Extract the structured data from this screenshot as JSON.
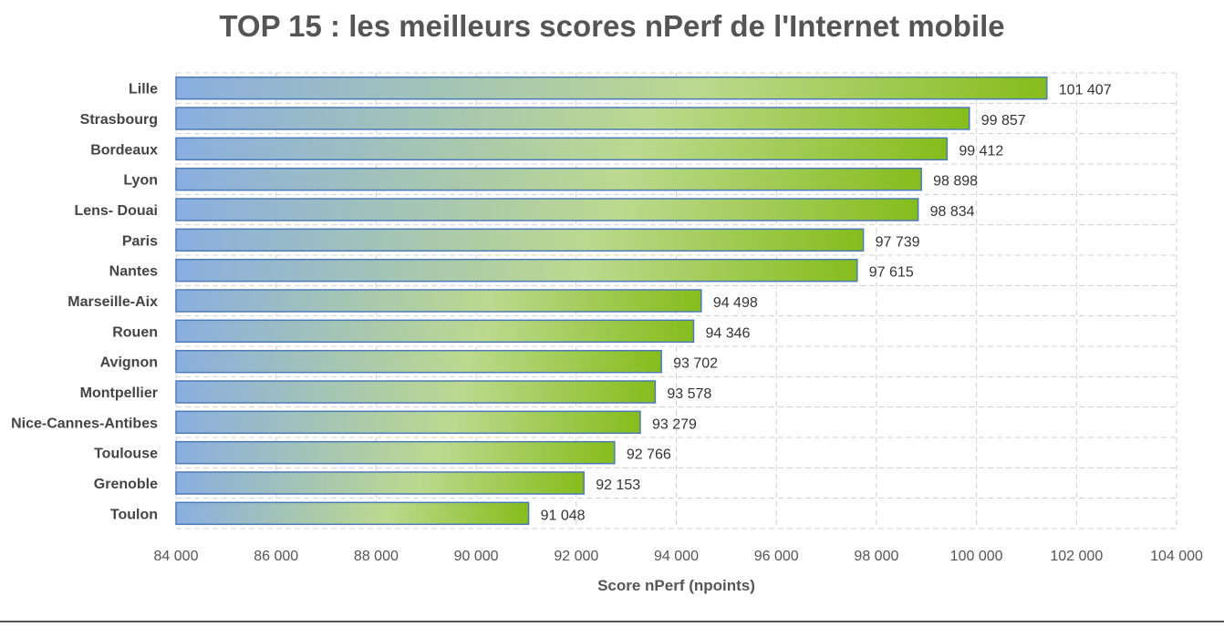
{
  "chart_data": {
    "type": "bar",
    "orientation": "horizontal",
    "title": "TOP 15 : les meilleurs scores nPerf de l'Internet mobile",
    "xlabel": "Score nPerf (npoints)",
    "ylabel": "",
    "xlim": [
      84000,
      104000
    ],
    "xticks": [
      84000,
      86000,
      88000,
      90000,
      92000,
      94000,
      96000,
      98000,
      100000,
      102000,
      104000
    ],
    "xtick_labels": [
      "84 000",
      "86 000",
      "88 000",
      "90 000",
      "92 000",
      "94 000",
      "96 000",
      "98 000",
      "100 000",
      "102 000",
      "104 000"
    ],
    "grid": true,
    "categories": [
      "Lille",
      "Strasbourg",
      "Bordeaux",
      "Lyon",
      "Lens- Douai",
      "Paris",
      "Nantes",
      "Marseille-Aix",
      "Rouen",
      "Avignon",
      "Montpellier",
      "Nice-Cannes-Antibes",
      "Toulouse",
      "Grenoble",
      "Toulon"
    ],
    "values": [
      101407,
      99857,
      99412,
      98898,
      98834,
      97739,
      97615,
      94498,
      94346,
      93702,
      93578,
      93279,
      92766,
      92153,
      91048
    ],
    "data_labels": [
      "101 407",
      "99 857",
      "99 412",
      "98 898",
      "98 834",
      "97 739",
      "97 615",
      "94 498",
      "94 346",
      "93 702",
      "93 578",
      "93 279",
      "92 766",
      "92 153",
      "91 048"
    ],
    "colors": {
      "gradient_start": "#8aaee0",
      "gradient_mid": "#bcd98e",
      "gradient_end": "#86bd1c",
      "bar_border": "#4a7ab8"
    }
  }
}
